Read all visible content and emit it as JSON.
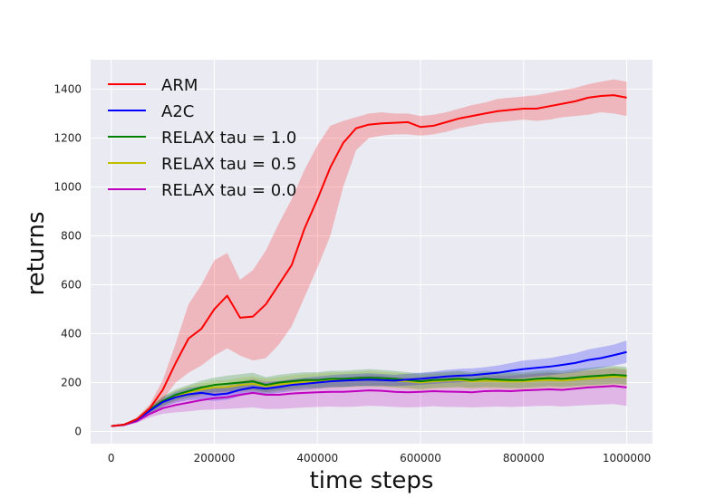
{
  "chart_data": {
    "type": "line",
    "title": "",
    "xlabel": "time steps",
    "ylabel": "returns",
    "xlim": [
      -40000,
      1050000
    ],
    "ylim": [
      -50,
      1520
    ],
    "x_ticks": [
      0,
      200000,
      400000,
      600000,
      800000,
      1000000
    ],
    "x_tick_labels": [
      "0",
      "200000",
      "400000",
      "600000",
      "800000",
      "1000000"
    ],
    "y_ticks": [
      0,
      200,
      400,
      600,
      800,
      1000,
      1200,
      1400
    ],
    "y_tick_labels": [
      "0",
      "200",
      "400",
      "600",
      "800",
      "1000",
      "1200",
      "1400"
    ],
    "grid": true,
    "legend_position": "top-left",
    "x": [
      0,
      25000,
      50000,
      75000,
      100000,
      125000,
      150000,
      175000,
      200000,
      225000,
      250000,
      275000,
      300000,
      325000,
      350000,
      375000,
      400000,
      425000,
      450000,
      475000,
      500000,
      525000,
      550000,
      575000,
      600000,
      625000,
      650000,
      675000,
      700000,
      725000,
      750000,
      775000,
      800000,
      825000,
      850000,
      875000,
      900000,
      925000,
      950000,
      975000,
      1000000
    ],
    "series": [
      {
        "name": "ARM",
        "color": "#ff0000",
        "values": [
          22,
          28,
          50,
          95,
          170,
          280,
          380,
          420,
          500,
          555,
          465,
          470,
          520,
          600,
          680,
          830,
          950,
          1080,
          1180,
          1240,
          1255,
          1260,
          1262,
          1265,
          1245,
          1250,
          1265,
          1280,
          1290,
          1300,
          1310,
          1315,
          1320,
          1320,
          1330,
          1340,
          1350,
          1365,
          1372,
          1375,
          1365
        ],
        "lower": [
          22,
          26,
          42,
          78,
          130,
          200,
          240,
          270,
          310,
          340,
          310,
          290,
          300,
          355,
          430,
          550,
          670,
          800,
          1000,
          1150,
          1200,
          1210,
          1215,
          1215,
          1210,
          1215,
          1225,
          1240,
          1250,
          1260,
          1265,
          1270,
          1275,
          1270,
          1275,
          1285,
          1290,
          1295,
          1305,
          1300,
          1290
        ],
        "upper": [
          22,
          30,
          58,
          112,
          210,
          360,
          520,
          600,
          700,
          730,
          620,
          660,
          740,
          850,
          950,
          1070,
          1170,
          1250,
          1270,
          1285,
          1300,
          1305,
          1300,
          1300,
          1290,
          1295,
          1305,
          1320,
          1335,
          1345,
          1360,
          1365,
          1370,
          1375,
          1385,
          1395,
          1405,
          1420,
          1430,
          1440,
          1430
        ]
      },
      {
        "name": "A2C",
        "color": "#0000ff",
        "values": [
          22,
          28,
          48,
          85,
          120,
          140,
          152,
          158,
          150,
          155,
          170,
          180,
          175,
          182,
          190,
          195,
          200,
          205,
          208,
          210,
          212,
          210,
          208,
          212,
          215,
          220,
          225,
          228,
          230,
          235,
          240,
          248,
          255,
          260,
          265,
          272,
          280,
          292,
          300,
          312,
          325
        ],
        "lower": [
          22,
          26,
          42,
          72,
          100,
          118,
          128,
          130,
          125,
          130,
          145,
          155,
          150,
          158,
          165,
          170,
          175,
          180,
          182,
          185,
          186,
          186,
          185,
          188,
          190,
          195,
          198,
          200,
          203,
          207,
          210,
          215,
          220,
          225,
          230,
          236,
          242,
          252,
          260,
          270,
          280
        ],
        "upper": [
          22,
          30,
          54,
          98,
          140,
          162,
          178,
          186,
          178,
          182,
          196,
          205,
          200,
          206,
          214,
          220,
          225,
          230,
          234,
          236,
          238,
          235,
          232,
          236,
          240,
          245,
          252,
          256,
          258,
          263,
          270,
          280,
          290,
          295,
          300,
          310,
          320,
          335,
          345,
          355,
          372
        ]
      },
      {
        "name": "RELAX tau = 1.0",
        "color": "#008000",
        "values": [
          22,
          28,
          50,
          90,
          125,
          150,
          165,
          180,
          190,
          195,
          200,
          205,
          190,
          200,
          205,
          210,
          210,
          215,
          215,
          218,
          220,
          218,
          215,
          210,
          205,
          210,
          212,
          215,
          210,
          215,
          212,
          210,
          210,
          215,
          218,
          215,
          220,
          225,
          228,
          232,
          228
        ],
        "lower": [
          22,
          26,
          44,
          76,
          105,
          128,
          140,
          152,
          160,
          163,
          167,
          170,
          160,
          168,
          173,
          178,
          178,
          182,
          182,
          185,
          186,
          185,
          182,
          178,
          173,
          178,
          180,
          182,
          178,
          182,
          180,
          178,
          178,
          182,
          185,
          182,
          186,
          190,
          192,
          196,
          192
        ],
        "upper": [
          22,
          30,
          56,
          104,
          145,
          172,
          190,
          208,
          220,
          228,
          234,
          240,
          222,
          232,
          238,
          242,
          242,
          248,
          248,
          252,
          255,
          252,
          248,
          242,
          238,
          242,
          245,
          248,
          242,
          248,
          245,
          242,
          242,
          248,
          252,
          248,
          255,
          260,
          265,
          268,
          264
        ]
      },
      {
        "name": "RELAX tau = 0.5",
        "color": "#bfbf00",
        "values": [
          22,
          28,
          48,
          88,
          120,
          145,
          160,
          172,
          180,
          182,
          190,
          195,
          185,
          192,
          198,
          202,
          205,
          208,
          210,
          212,
          214,
          212,
          208,
          205,
          200,
          205,
          208,
          210,
          205,
          208,
          206,
          204,
          205,
          208,
          210,
          208,
          212,
          216,
          220,
          225,
          222
        ],
        "lower": [
          22,
          26,
          42,
          74,
          100,
          122,
          135,
          145,
          152,
          154,
          160,
          164,
          155,
          162,
          167,
          170,
          173,
          176,
          178,
          180,
          181,
          180,
          176,
          173,
          168,
          173,
          176,
          178,
          173,
          176,
          174,
          172,
          173,
          176,
          178,
          176,
          180,
          183,
          186,
          190,
          187
        ],
        "upper": [
          22,
          30,
          54,
          102,
          140,
          168,
          185,
          199,
          208,
          210,
          220,
          226,
          215,
          222,
          229,
          234,
          237,
          240,
          242,
          244,
          247,
          244,
          240,
          237,
          232,
          237,
          240,
          242,
          237,
          240,
          238,
          236,
          237,
          240,
          242,
          240,
          244,
          249,
          254,
          260,
          257
        ]
      },
      {
        "name": "RELAX tau = 0.0",
        "color": "#bf00bf",
        "values": [
          22,
          26,
          42,
          72,
          95,
          108,
          118,
          128,
          136,
          140,
          150,
          158,
          150,
          150,
          155,
          158,
          160,
          162,
          162,
          165,
          168,
          166,
          162,
          160,
          162,
          165,
          163,
          162,
          160,
          165,
          166,
          165,
          168,
          170,
          172,
          170,
          175,
          180,
          183,
          186,
          180
        ],
        "lower": [
          22,
          24,
          35,
          58,
          72,
          78,
          82,
          88,
          90,
          92,
          95,
          98,
          92,
          92,
          95,
          98,
          100,
          102,
          100,
          102,
          105,
          103,
          100,
          98,
          100,
          103,
          100,
          100,
          98,
          100,
          102,
          100,
          102,
          104,
          105,
          102,
          105,
          108,
          110,
          112,
          104
        ],
        "upper": [
          22,
          28,
          50,
          88,
          120,
          140,
          155,
          168,
          180,
          188,
          205,
          215,
          205,
          205,
          212,
          216,
          218,
          220,
          222,
          226,
          230,
          228,
          222,
          220,
          222,
          226,
          224,
          222,
          220,
          226,
          228,
          228,
          232,
          236,
          240,
          238,
          245,
          250,
          255,
          258,
          252
        ]
      }
    ]
  }
}
